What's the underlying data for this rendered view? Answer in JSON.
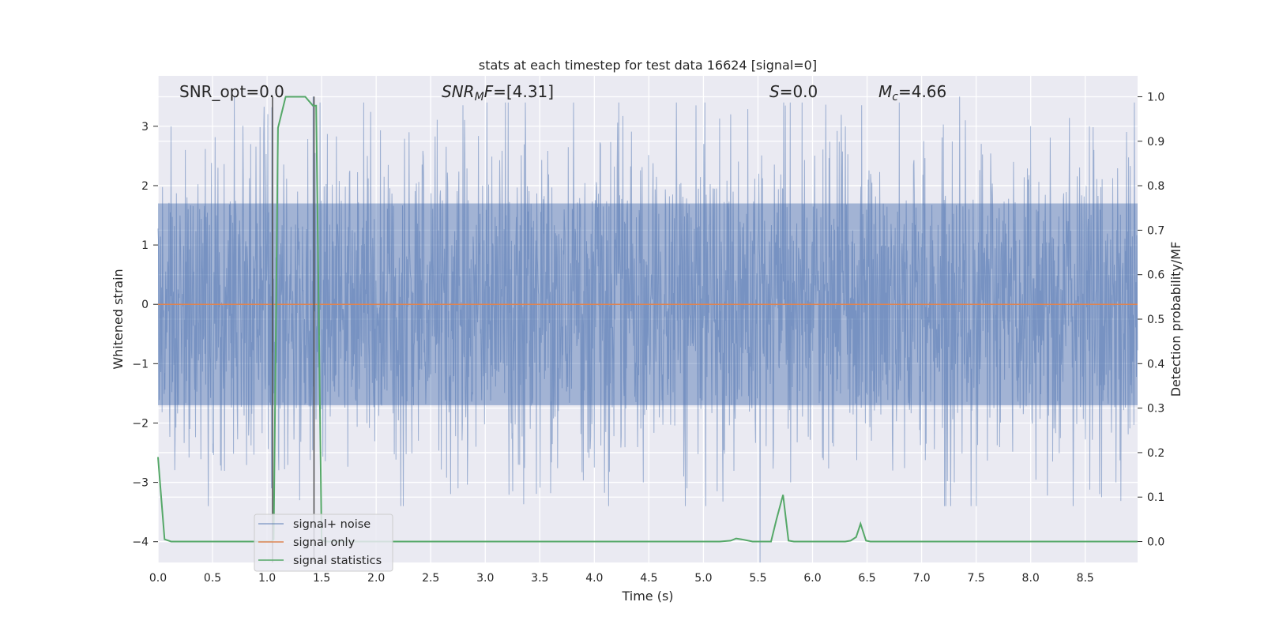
{
  "chart_data": {
    "type": "line",
    "title": "stats at each timestep for test data 16624 [signal=0]",
    "xlabel": "Time (s)",
    "ylabel": "Whitened strain",
    "y2label": "Detection probability/MF",
    "xlim": [
      0.0,
      8.98
    ],
    "ylim": [
      -4.35,
      3.85
    ],
    "y2lim": [
      -0.047,
      1.047
    ],
    "x_ticks": [
      "0.0",
      "0.5",
      "1.0",
      "1.5",
      "2.0",
      "2.5",
      "3.0",
      "3.5",
      "4.0",
      "4.5",
      "5.0",
      "5.5",
      "6.0",
      "6.5",
      "7.0",
      "7.5",
      "8.0",
      "8.5"
    ],
    "y_ticks": [
      "3",
      "2",
      "1",
      "0",
      "−1",
      "−2",
      "−3",
      "−4"
    ],
    "y2_ticks": [
      "1.0",
      "0.9",
      "0.8",
      "0.7",
      "0.6",
      "0.5",
      "0.4",
      "0.3",
      "0.2",
      "0.1",
      "0.0"
    ],
    "grid": true,
    "legend_position": "lower-left",
    "annotations": {
      "snr_opt": "SNR_opt=0.0",
      "snr_mf_main": "SNR",
      "snr_mf_sub": "M",
      "snr_mf_tail": "F",
      "snr_mf_value": "=[4.31]",
      "s_label": "S",
      "s_value": "=0.0",
      "mc_main": "M",
      "mc_sub": "c",
      "mc_value": "=4.66"
    },
    "vertical_lines_x": [
      1.05,
      1.43
    ],
    "series": [
      {
        "name": "signal+ noise",
        "color": "#4c72b0",
        "style": "noise band",
        "band": [
          -1.7,
          1.7
        ],
        "x_range": [
          0.0,
          8.98
        ],
        "notable_peaks": [
          {
            "x": 0.12,
            "y": 3.0
          },
          {
            "x": 0.25,
            "y": 2.6
          },
          {
            "x": 0.55,
            "y": 2.3
          },
          {
            "x": 0.7,
            "y": 3.5
          },
          {
            "x": 0.85,
            "y": 2.7
          },
          {
            "x": 1.42,
            "y": 3.5
          },
          {
            "x": 2.3,
            "y": 2.9
          },
          {
            "x": 3.25,
            "y": 3.0
          },
          {
            "x": 5.25,
            "y": 3.2
          },
          {
            "x": 5.75,
            "y": 3.35
          },
          {
            "x": 6.3,
            "y": 3.0
          },
          {
            "x": 7.35,
            "y": 3.5
          },
          {
            "x": 8.0,
            "y": 3.0
          },
          {
            "x": 8.58,
            "y": 2.6
          },
          {
            "x": 0.5,
            "y": -2.5
          },
          {
            "x": 0.58,
            "y": -2.8
          },
          {
            "x": 1.04,
            "y": -3.1
          },
          {
            "x": 1.3,
            "y": -3.3
          },
          {
            "x": 2.75,
            "y": -3.1
          },
          {
            "x": 3.25,
            "y": -3.15
          },
          {
            "x": 4.45,
            "y": -3.0
          },
          {
            "x": 4.85,
            "y": -3.1
          },
          {
            "x": 5.52,
            "y": -4.35
          },
          {
            "x": 5.8,
            "y": -3.0
          },
          {
            "x": 7.3,
            "y": -3.0
          },
          {
            "x": 8.65,
            "y": -3.25
          },
          {
            "x": 8.78,
            "y": -3.0
          }
        ]
      },
      {
        "name": "signal only",
        "color": "#dd8452",
        "axis": "left",
        "x": [
          0.0,
          8.98
        ],
        "y": [
          0.0,
          0.0
        ]
      },
      {
        "name": "signal statistics",
        "color": "#55a868",
        "axis": "right",
        "x": [
          0.0,
          0.06,
          0.12,
          0.2,
          0.5,
          1.0,
          1.04,
          1.06,
          1.1,
          1.17,
          1.25,
          1.35,
          1.42,
          1.45,
          1.5,
          1.53,
          1.6,
          2.0,
          3.0,
          4.0,
          5.0,
          5.15,
          5.25,
          5.3,
          5.35,
          5.45,
          5.55,
          5.62,
          5.67,
          5.73,
          5.78,
          5.83,
          5.9,
          6.0,
          6.3,
          6.35,
          6.4,
          6.44,
          6.49,
          6.53,
          6.6,
          6.7,
          7.0,
          8.0,
          8.98
        ],
        "y": [
          0.19,
          0.005,
          0.0,
          0.0,
          0.0,
          0.0,
          0.0,
          0.005,
          0.93,
          1.0,
          1.0,
          1.0,
          0.98,
          0.98,
          0.005,
          0.0,
          0.0,
          0.0,
          0.0,
          0.0,
          0.0,
          0.0,
          0.002,
          0.007,
          0.005,
          0.0,
          0.0,
          0.0,
          0.05,
          0.105,
          0.002,
          0.0,
          0.0,
          0.0,
          0.0,
          0.002,
          0.01,
          0.04,
          0.002,
          0.0,
          0.0,
          0.0,
          0.0,
          0.0,
          0.0
        ]
      }
    ]
  }
}
